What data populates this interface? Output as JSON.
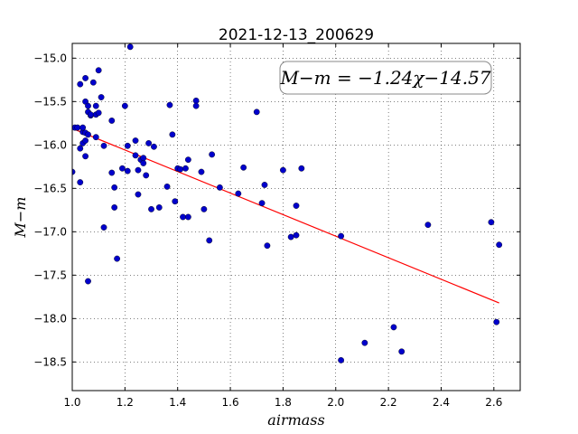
{
  "chart_data": {
    "type": "scatter",
    "title": "2021-12-13_200629",
    "xlabel": "airmass",
    "ylabel": "M−m",
    "annotation": "M−m = −1.24χ−14.57",
    "xlim": [
      1.0,
      2.7
    ],
    "ylim": [
      -18.83,
      -14.83
    ],
    "y_inverted": true,
    "grid": true,
    "xticks": [
      1.0,
      1.2,
      1.4,
      1.6,
      1.8,
      2.0,
      2.2,
      2.4,
      2.6
    ],
    "xtick_labels": [
      "1.0",
      "1.2",
      "1.4",
      "1.6",
      "1.8",
      "2.0",
      "2.2",
      "2.4",
      "2.6"
    ],
    "yticks": [
      -15.0,
      -15.5,
      -16.0,
      -16.5,
      -17.0,
      -17.5,
      -18.0,
      -18.5
    ],
    "ytick_labels": [
      "−15.0",
      "−15.5",
      "−16.0",
      "−16.5",
      "−17.0",
      "−17.5",
      "−18.0",
      "−18.5"
    ],
    "fit_line": {
      "x": [
        1.0,
        2.62
      ],
      "y": [
        -15.81,
        -17.82
      ],
      "color": "#ff0000"
    },
    "point_color": "#0000cc",
    "x": [
      1.0,
      1.01,
      1.02,
      1.03,
      1.03,
      1.03,
      1.04,
      1.04,
      1.04,
      1.05,
      1.05,
      1.05,
      1.05,
      1.05,
      1.06,
      1.06,
      1.06,
      1.06,
      1.07,
      1.07,
      1.08,
      1.09,
      1.09,
      1.09,
      1.1,
      1.1,
      1.11,
      1.12,
      1.12,
      1.15,
      1.15,
      1.16,
      1.16,
      1.17,
      1.19,
      1.2,
      1.21,
      1.21,
      1.22,
      1.24,
      1.24,
      1.25,
      1.25,
      1.26,
      1.27,
      1.27,
      1.28,
      1.29,
      1.3,
      1.31,
      1.33,
      1.36,
      1.37,
      1.38,
      1.39,
      1.4,
      1.41,
      1.42,
      1.43,
      1.44,
      1.44,
      1.47,
      1.47,
      1.49,
      1.5,
      1.52,
      1.53,
      1.56,
      1.63,
      1.65,
      1.7,
      1.72,
      1.73,
      1.74,
      1.8,
      1.83,
      1.85,
      1.85,
      1.87,
      2.02,
      2.02,
      2.11,
      2.22,
      2.25,
      2.35,
      2.59,
      2.61,
      2.62
    ],
    "y": [
      -16.31,
      -15.8,
      -15.8,
      -16.43,
      -15.3,
      -16.04,
      -15.85,
      -15.8,
      -15.98,
      -15.5,
      -15.95,
      -16.13,
      -15.23,
      -15.86,
      -15.55,
      -15.62,
      -15.88,
      -17.57,
      -15.66,
      -15.65,
      -15.28,
      -15.55,
      -15.65,
      -15.91,
      -15.14,
      -15.63,
      -15.45,
      -16.95,
      -16.01,
      -16.32,
      -15.72,
      -16.72,
      -16.49,
      -17.31,
      -16.27,
      -15.55,
      -16.01,
      -16.3,
      -14.87,
      -15.95,
      -16.12,
      -16.29,
      -16.57,
      -16.17,
      -16.21,
      -16.15,
      -16.35,
      -15.98,
      -16.74,
      -16.02,
      -16.72,
      -16.48,
      -15.54,
      -15.88,
      -16.65,
      -16.27,
      -16.28,
      -16.83,
      -16.27,
      -16.83,
      -16.17,
      -15.49,
      -15.55,
      -16.31,
      -16.74,
      -17.1,
      -16.11,
      -16.49,
      -16.56,
      -16.26,
      -15.62,
      -16.67,
      -16.46,
      -17.16,
      -16.29,
      -17.06,
      -16.7,
      -17.04,
      -16.27,
      -18.48,
      -17.05,
      -18.28,
      -18.1,
      -18.38,
      -16.92,
      -16.89,
      -18.04,
      -17.15
    ]
  }
}
